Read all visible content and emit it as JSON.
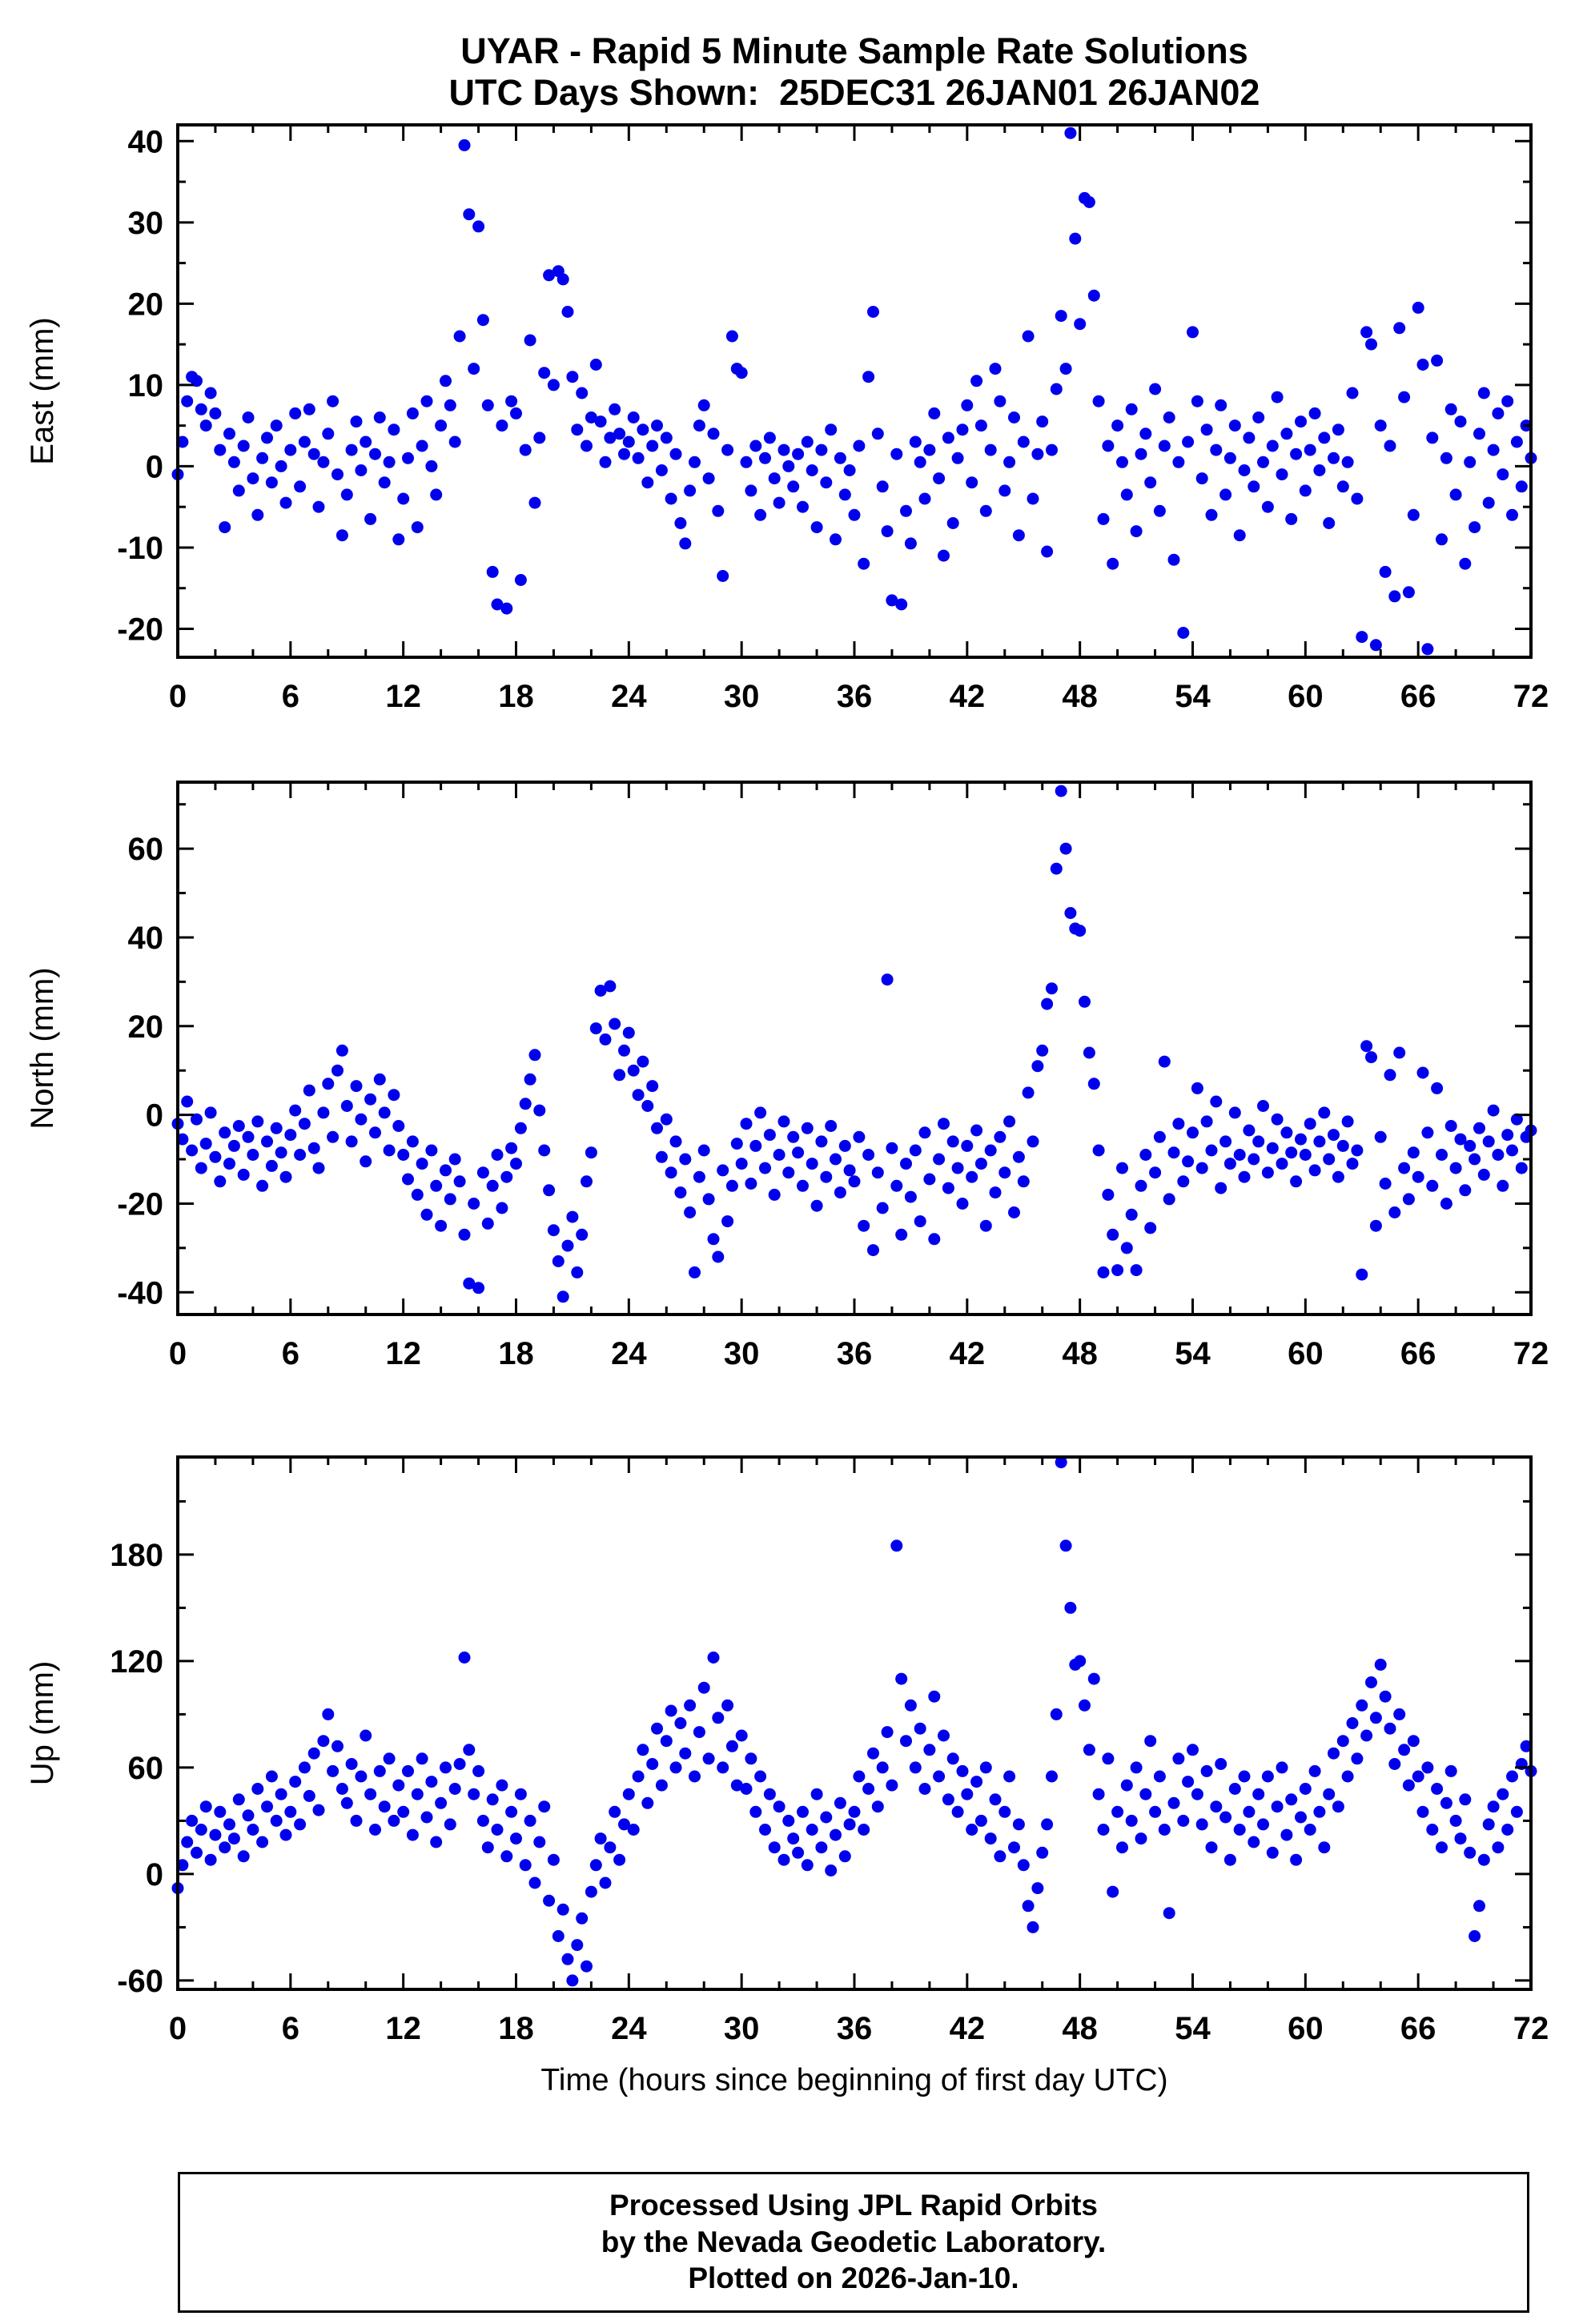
{
  "chart_data": {
    "type": "scatter",
    "title_line1": "UYAR - Rapid 5 Minute Sample Rate Solutions",
    "title_line2": "UTC Days Shown:  25DEC31 26JAN01 26JAN02",
    "xlabel": "Time (hours since beginning of first day UTC)",
    "marker_color": "#0000ee",
    "axis_color": "#000000",
    "grid": false,
    "legend": "none",
    "x": {
      "start": 0,
      "step": 0.25,
      "count": 289
    },
    "xticks": {
      "min": 0,
      "max": 72,
      "major": 6,
      "minor": 2,
      "labels": [
        0,
        6,
        12,
        18,
        24,
        30,
        36,
        42,
        48,
        54,
        60,
        66,
        72
      ]
    },
    "panels": [
      {
        "name": "east",
        "ylabel": "East (mm)",
        "ylim": [
          -23.5,
          42
        ],
        "ytick_major": 10,
        "ytick_minor": 5,
        "ytick_labels": [
          -20,
          -10,
          0,
          10,
          20,
          30,
          40
        ],
        "values": [
          -1,
          3,
          8,
          11,
          10.5,
          7,
          5,
          9,
          6.5,
          2,
          -7.5,
          4,
          0.5,
          -3,
          2.5,
          6,
          -1.5,
          -6,
          1,
          3.5,
          -2,
          5,
          0,
          -4.5,
          2,
          6.5,
          -2.5,
          3,
          7,
          1.5,
          -5,
          0.5,
          4,
          8,
          -1,
          -8.5,
          -3.5,
          2,
          5.5,
          -0.5,
          3,
          -6.5,
          1.5,
          6,
          -2,
          0.5,
          4.5,
          -9,
          -4,
          1,
          6.5,
          -7.5,
          2.5,
          8,
          0,
          -3.5,
          5,
          10.5,
          7.5,
          3,
          16,
          39.5,
          31,
          12,
          29.5,
          18,
          7.5,
          -13,
          -17,
          5,
          -17.5,
          8,
          6.5,
          -14,
          2,
          15.5,
          -4.5,
          3.5,
          11.5,
          23.5,
          10,
          24,
          23,
          19,
          11,
          4.5,
          9,
          2.5,
          6,
          12.5,
          5.5,
          0.5,
          3.5,
          7,
          4,
          1.5,
          3,
          6,
          1,
          4.5,
          -2,
          2.5,
          5,
          -0.5,
          3.5,
          -4,
          1.5,
          -7,
          -9.5,
          -3,
          0.5,
          5,
          7.5,
          -1.5,
          4,
          -5.5,
          -13.5,
          2,
          16,
          12,
          11.5,
          0.5,
          -3,
          2.5,
          -6,
          1,
          3.5,
          -1.5,
          -4.5,
          2,
          0,
          -2.5,
          1.5,
          -5,
          3,
          -0.5,
          -7.5,
          2,
          -2,
          4.5,
          -9,
          1,
          -3.5,
          -0.5,
          -6,
          2.5,
          -12,
          11,
          19,
          4,
          -2.5,
          -8,
          -16.5,
          1.5,
          -17,
          -5.5,
          -9.5,
          3,
          0.5,
          -4,
          2,
          6.5,
          -1.5,
          -11,
          3.5,
          -7,
          1,
          4.5,
          7.5,
          -2,
          10.5,
          5,
          -5.5,
          2,
          12,
          8,
          -3,
          0.5,
          6,
          -8.5,
          3,
          16,
          -4,
          1.5,
          5.5,
          -10.5,
          2,
          9.5,
          18.5,
          12,
          41,
          28,
          17.5,
          33,
          32.5,
          21,
          8,
          -6.5,
          2.5,
          -12,
          5,
          0.5,
          -3.5,
          7,
          -8,
          1.5,
          4,
          -2,
          9.5,
          -5.5,
          2.5,
          6,
          -11.5,
          0.5,
          -20.5,
          3,
          16.5,
          8,
          -1.5,
          4.5,
          -6,
          2,
          7.5,
          -3.5,
          1,
          5,
          -8.5,
          -0.5,
          3.5,
          -2.5,
          6,
          0.5,
          -5,
          2.5,
          8.5,
          -1,
          4,
          -6.5,
          1.5,
          5.5,
          -3,
          2,
          6.5,
          -0.5,
          3.5,
          -7,
          1,
          4.5,
          -2.5,
          0.5,
          9,
          -4,
          -21,
          16.5,
          15,
          -22,
          5,
          -13,
          2.5,
          -16,
          17,
          8.5,
          -15.5,
          -6,
          19.5,
          12.5,
          -22.5,
          3.5,
          13,
          -9,
          1,
          7,
          -3.5,
          5.5,
          -12,
          0.5,
          -7.5,
          4,
          9,
          -4.5,
          2,
          6.5,
          -1,
          8,
          -6,
          3,
          -2.5,
          5,
          1
        ]
      },
      {
        "name": "north",
        "ylabel": "North (mm)",
        "ylim": [
          -45,
          75
        ],
        "ytick_major": 20,
        "ytick_minor": 10,
        "ytick_labels": [
          -40,
          -20,
          0,
          20,
          40,
          60
        ],
        "values": [
          -2,
          -5.5,
          3,
          -8,
          -1,
          -12,
          -6.5,
          0.5,
          -9.5,
          -15,
          -4,
          -11,
          -7,
          -2.5,
          -13.5,
          -5,
          -9,
          -1.5,
          -16,
          -6,
          -11.5,
          -3,
          -8.5,
          -14,
          -4.5,
          1,
          -9,
          -2,
          5.5,
          -7.5,
          -12,
          0.5,
          7,
          -5,
          10,
          14.5,
          2,
          -6,
          6.5,
          -1,
          -10.5,
          3.5,
          -4,
          8,
          0.5,
          -8,
          4.5,
          -2.5,
          -9,
          -14.5,
          -6,
          -18,
          -11,
          -22.5,
          -8,
          -16,
          -25,
          -12.5,
          -19,
          -10,
          -15,
          -27,
          -38,
          -20,
          -39,
          -13,
          -24.5,
          -16,
          -9,
          -21,
          -14,
          -7.5,
          -11,
          -3,
          2.5,
          8,
          13.5,
          1,
          -8,
          -17,
          -26,
          -33,
          -41,
          -29.5,
          -23,
          -35.5,
          -27,
          -15,
          -8.5,
          19.5,
          28,
          17,
          29,
          20.5,
          9,
          14.5,
          18.5,
          10,
          4.5,
          12,
          2,
          6.5,
          -3,
          -9.5,
          -1,
          -13,
          -6,
          -17.5,
          -10,
          -22,
          -35.5,
          -14,
          -8,
          -19,
          -28,
          -32,
          -12.5,
          -24,
          -16,
          -6.5,
          -11,
          -2,
          -15.5,
          -7,
          0.5,
          -12,
          -4.5,
          -18,
          -9,
          -1.5,
          -13,
          -5,
          -8.5,
          -16,
          -3,
          -11,
          -20.5,
          -6,
          -14,
          -2.5,
          -10,
          -17.5,
          -7,
          -12.5,
          -15,
          -5,
          -25,
          -9,
          -30.5,
          -13,
          -21,
          30.5,
          -7.5,
          -16,
          -27,
          -11,
          -18.5,
          -8,
          -24,
          -4,
          -14.5,
          -28,
          -10,
          -2,
          -16.5,
          -6,
          -12,
          -20,
          -7,
          -14,
          -3.5,
          -11,
          -25,
          -8,
          -17.5,
          -5,
          -13,
          -1.5,
          -22,
          -9.5,
          -15,
          5,
          -6,
          11,
          14.5,
          25,
          28.5,
          55.5,
          73,
          60,
          45.5,
          42,
          41.5,
          25.5,
          14,
          7,
          -8,
          -35.5,
          -18,
          -27,
          -35,
          -12,
          -30,
          -22.5,
          -35,
          -16,
          -9,
          -25.5,
          -13,
          -5,
          12,
          -19,
          -8.5,
          -2,
          -15,
          -10.5,
          -4,
          6,
          -12,
          -1.5,
          -8,
          3,
          -16.5,
          -6,
          -11,
          0.5,
          -9,
          -14,
          -3.5,
          -10,
          -6,
          2,
          -13,
          -7.5,
          -1,
          -11,
          -4,
          -8.5,
          -15,
          -5.5,
          -9,
          -2,
          -12.5,
          -6,
          0.5,
          -10,
          -4.5,
          -14,
          -7,
          -1.5,
          -11,
          -8,
          -36,
          15.5,
          13,
          -25,
          -5,
          -15.5,
          9,
          -22,
          14,
          -12,
          -19,
          -8.5,
          -14,
          9.5,
          -4,
          -16,
          6,
          -9,
          -20,
          -2.5,
          -12,
          -5.5,
          -17,
          -7,
          -10,
          -3,
          -13.5,
          -6,
          1,
          -9,
          -16,
          -4.5,
          -8,
          -1,
          -12,
          -5,
          -3.5
        ]
      },
      {
        "name": "up",
        "ylabel": "Up (mm)",
        "ylim": [
          -65,
          235
        ],
        "ytick_major": 60,
        "ytick_minor": 30,
        "ytick_labels": [
          -60,
          0,
          60,
          120,
          180
        ],
        "values": [
          -8,
          5,
          18,
          30,
          12,
          25,
          38,
          8,
          22,
          35,
          15,
          28,
          20,
          42,
          10,
          33,
          25,
          48,
          18,
          38,
          55,
          30,
          45,
          22,
          35,
          52,
          28,
          60,
          44,
          68,
          36,
          75,
          90,
          58,
          72,
          48,
          40,
          62,
          30,
          55,
          78,
          45,
          25,
          58,
          38,
          65,
          30,
          50,
          35,
          58,
          22,
          45,
          65,
          32,
          52,
          18,
          40,
          60,
          28,
          48,
          62,
          122,
          70,
          45,
          58,
          30,
          15,
          42,
          25,
          50,
          10,
          35,
          20,
          45,
          5,
          30,
          -5,
          18,
          38,
          -15,
          8,
          -35,
          -20,
          -48,
          -60,
          -40,
          -25,
          -52,
          -10,
          5,
          20,
          -5,
          15,
          35,
          8,
          28,
          45,
          25,
          55,
          70,
          40,
          62,
          82,
          50,
          75,
          92,
          60,
          85,
          68,
          95,
          55,
          80,
          105,
          65,
          122,
          88,
          60,
          95,
          72,
          50,
          78,
          48,
          65,
          35,
          55,
          25,
          45,
          15,
          38,
          8,
          30,
          20,
          12,
          35,
          5,
          25,
          45,
          15,
          32,
          2,
          22,
          40,
          10,
          28,
          35,
          55,
          25,
          48,
          68,
          38,
          60,
          80,
          50,
          185,
          110,
          75,
          95,
          60,
          82,
          48,
          70,
          100,
          55,
          78,
          42,
          65,
          35,
          58,
          45,
          25,
          52,
          30,
          60,
          20,
          42,
          10,
          35,
          55,
          15,
          28,
          5,
          -18,
          -30,
          -8,
          12,
          28,
          55,
          90,
          232,
          185,
          150,
          118,
          120,
          95,
          70,
          110,
          45,
          25,
          65,
          -10,
          35,
          15,
          50,
          30,
          60,
          20,
          45,
          75,
          35,
          55,
          25,
          -22,
          40,
          65,
          30,
          52,
          70,
          45,
          28,
          58,
          15,
          38,
          62,
          32,
          8,
          48,
          25,
          55,
          35,
          18,
          45,
          28,
          55,
          12,
          38,
          60,
          22,
          42,
          8,
          32,
          48,
          25,
          58,
          35,
          15,
          45,
          68,
          38,
          75,
          55,
          85,
          65,
          95,
          78,
          108,
          88,
          118,
          100,
          82,
          62,
          90,
          70,
          50,
          75,
          55,
          35,
          60,
          25,
          48,
          15,
          40,
          58,
          30,
          20,
          42,
          12,
          -35,
          -18,
          8,
          28,
          38,
          15,
          45,
          25,
          55,
          35,
          62,
          72,
          58
        ]
      }
    ]
  },
  "footer": {
    "lines": [
      "Processed Using JPL Rapid Orbits",
      "by the Nevada Geodetic Laboratory.",
      "Plotted on 2026-Jan-10."
    ]
  }
}
